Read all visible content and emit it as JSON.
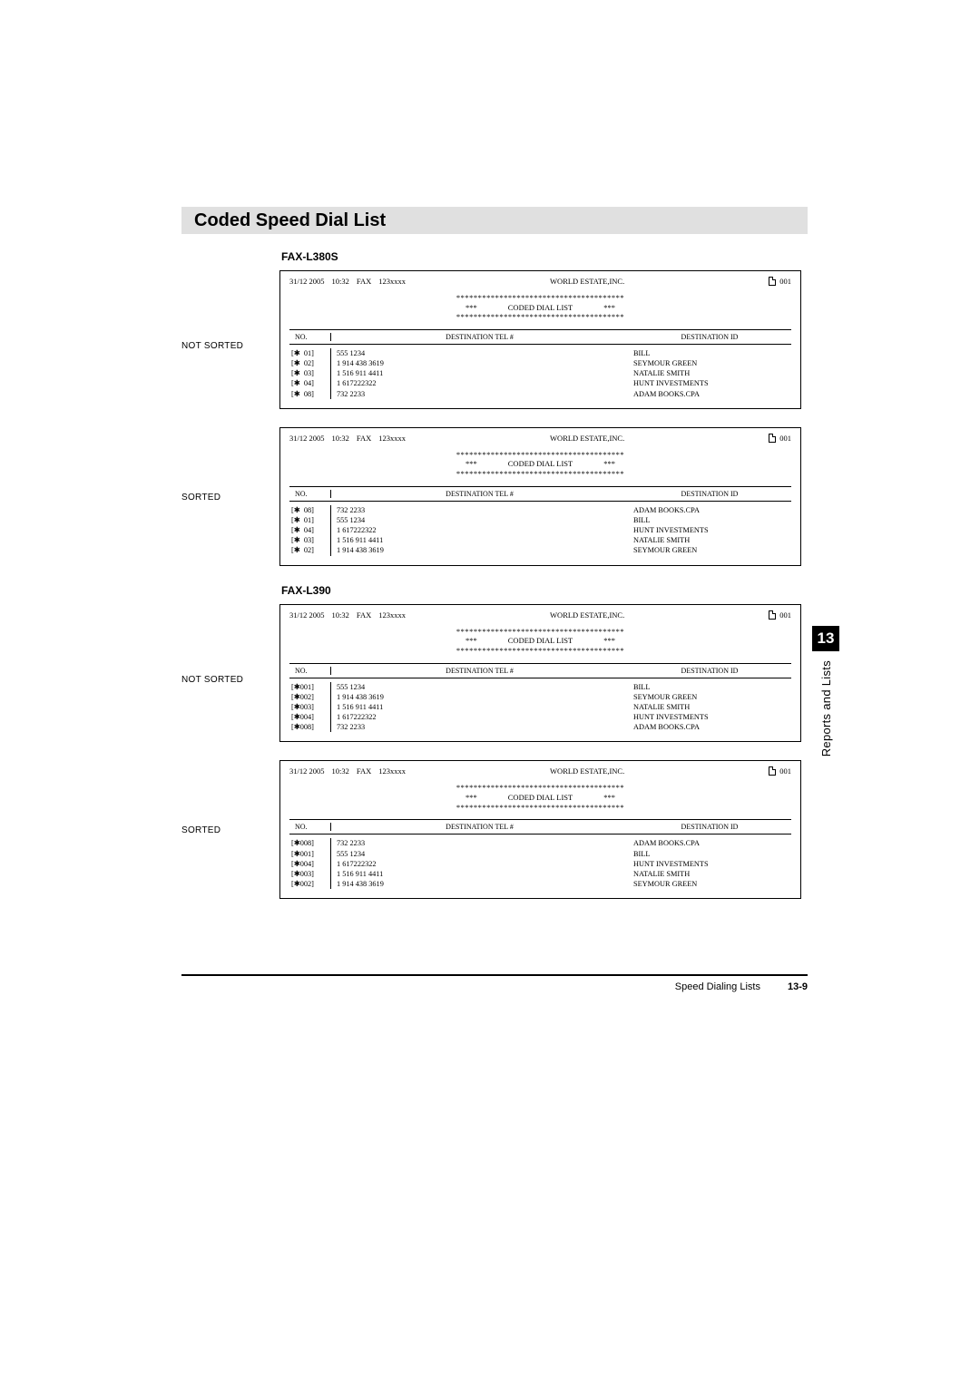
{
  "colors": {
    "background": "#ffffff",
    "text": "#000000",
    "title_bar_bg": "#e0e0e0",
    "tab_bg": "#000000",
    "tab_fg": "#ffffff",
    "rule": "#000000"
  },
  "section_title": "Coded Speed Dial List",
  "chapter": {
    "number": "13",
    "label": "Reports and Lists"
  },
  "footer": {
    "section": "Speed Dialing Lists",
    "page": "13-9"
  },
  "labels": {
    "not_sorted": "NOT SORTED",
    "sorted": "SORTED",
    "col_no": "NO.",
    "col_tel": "DESTINATION TEL #",
    "col_id": "DESTINATION ID",
    "coded_dial_list": "CODED DIAL LIST",
    "stars_line": "***************************************",
    "stars_short": "***"
  },
  "report_header": {
    "date": "31/12 2005",
    "time": "10:32",
    "mode": "FAX",
    "tel": "123xxxx",
    "company": "WORLD ESTATE,INC.",
    "page": "001"
  },
  "models": [
    {
      "name": "FAX-L380S",
      "no_width": 2,
      "reports": [
        {
          "label_key": "not_sorted",
          "rows": [
            {
              "no": "01",
              "tel": "555 1234",
              "id": "BILL"
            },
            {
              "no": "02",
              "tel": "1 914 438 3619",
              "id": "SEYMOUR GREEN"
            },
            {
              "no": "03",
              "tel": "1 516 911 4411",
              "id": "NATALIE SMITH"
            },
            {
              "no": "04",
              "tel": "1 617222322",
              "id": "HUNT INVESTMENTS"
            },
            {
              "no": "08",
              "tel": "732 2233",
              "id": "ADAM BOOKS.CPA"
            }
          ]
        },
        {
          "label_key": "sorted",
          "rows": [
            {
              "no": "08",
              "tel": "732 2233",
              "id": "ADAM BOOKS.CPA"
            },
            {
              "no": "01",
              "tel": "555 1234",
              "id": "BILL"
            },
            {
              "no": "04",
              "tel": "1 617222322",
              "id": "HUNT INVESTMENTS"
            },
            {
              "no": "03",
              "tel": "1 516 911 4411",
              "id": "NATALIE SMITH"
            },
            {
              "no": "02",
              "tel": "1 914 438 3619",
              "id": "SEYMOUR GREEN"
            }
          ]
        }
      ]
    },
    {
      "name": "FAX-L390",
      "no_width": 3,
      "reports": [
        {
          "label_key": "not_sorted",
          "rows": [
            {
              "no": "001",
              "tel": "555 1234",
              "id": "BILL"
            },
            {
              "no": "002",
              "tel": "1 914 438 3619",
              "id": "SEYMOUR GREEN"
            },
            {
              "no": "003",
              "tel": "1 516 911 4411",
              "id": "NATALIE SMITH"
            },
            {
              "no": "004",
              "tel": "1 617222322",
              "id": "HUNT INVESTMENTS"
            },
            {
              "no": "008",
              "tel": "732 2233",
              "id": "ADAM BOOKS.CPA"
            }
          ]
        },
        {
          "label_key": "sorted",
          "rows": [
            {
              "no": "008",
              "tel": "732 2233",
              "id": "ADAM BOOKS.CPA"
            },
            {
              "no": "001",
              "tel": "555 1234",
              "id": "BILL"
            },
            {
              "no": "004",
              "tel": "1 617222322",
              "id": "HUNT INVESTMENTS"
            },
            {
              "no": "003",
              "tel": "1 516 911 4411",
              "id": "NATALIE SMITH"
            },
            {
              "no": "002",
              "tel": "1 914 438 3619",
              "id": "SEYMOUR GREEN"
            }
          ]
        }
      ]
    }
  ]
}
